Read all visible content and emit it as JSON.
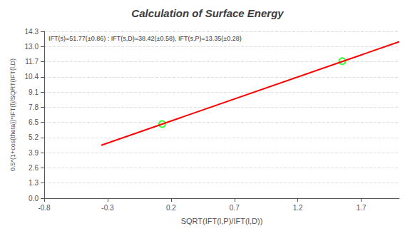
{
  "chart_data": {
    "type": "scatter",
    "title": "Calculation of Surface Energy",
    "x_label": "SQRT(IFT(l,P)/IFT(l,D))",
    "y_label": "0.5*(1+cos(theta))*IFT(l)/SQRT(IFT(l,D)",
    "annotation": "IFT(s)=51.77(±0.86) : IFT(s,D)=38.42(±0.58), IFT(s,P)=13.35(±0.28)",
    "series": [
      {
        "type": "line",
        "color": "#FF0000",
        "line_style": "solid",
        "x": [
          -0.35,
          2.0
        ],
        "values": [
          4.53977,
          13.4176
        ]
      },
      {
        "type": "scatter",
        "color": "#00FF00",
        "marker": "circle",
        "x": [
          0.13,
          1.55
        ],
        "values": [
          6.35,
          11.75
        ]
      }
    ],
    "xlim": [
      -0.8,
      2.0
    ],
    "xticks": [
      -0.8,
      -0.3,
      0.2,
      0.7,
      1.2,
      1.7
    ],
    "ylim": [
      0,
      14.3
    ],
    "yticks": [
      {
        "value": 0,
        "label": "0.0"
      },
      1.3,
      2.6,
      3.9,
      5.2,
      6.5,
      7.8,
      9.1,
      10.4,
      11.7,
      {
        "value": 13.0,
        "label": "13.0"
      },
      14.3
    ],
    "grid": "y"
  }
}
